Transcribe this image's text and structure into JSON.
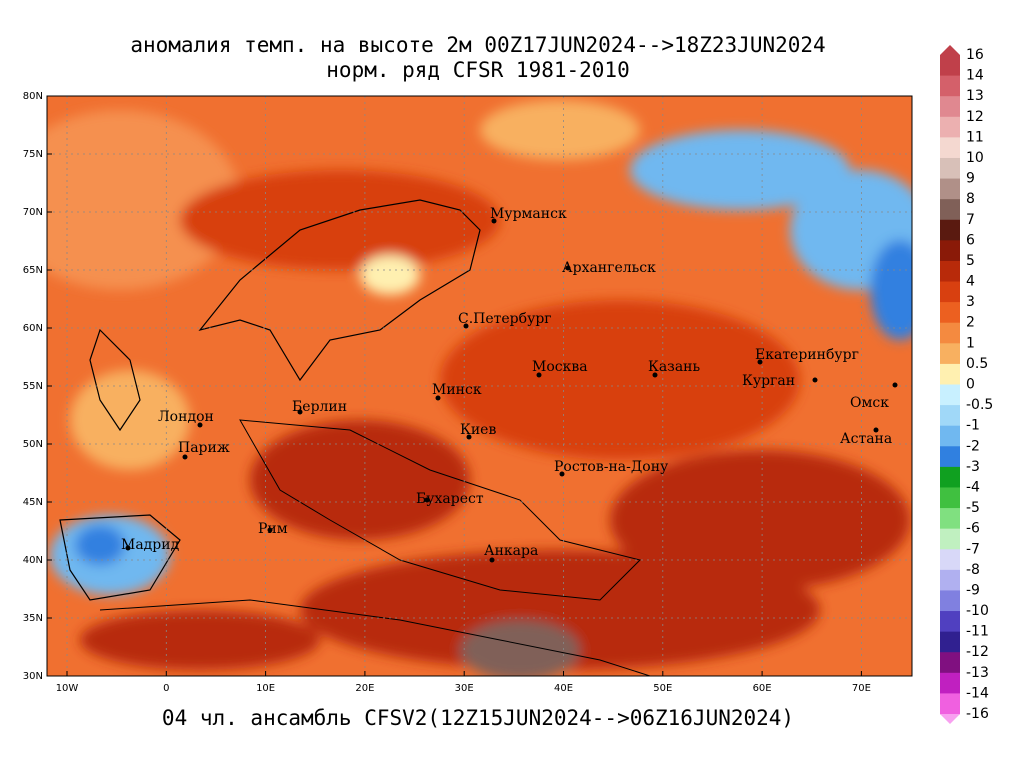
{
  "header": {
    "title": "аномалия темп. на высоте 2м 00Z17JUN2024-->18Z23JUN2024",
    "subtitle": "норм. ряд CFSR 1981-2010"
  },
  "footer": "04 чл. ансамбль CFSV2(12Z15JUN2024-->06Z16JUN2024)",
  "map": {
    "lat_labels": [
      "80N",
      "75N",
      "70N",
      "65N",
      "60N",
      "55N",
      "50N",
      "45N",
      "40N",
      "35N",
      "30N"
    ],
    "lon_labels": [
      "10W",
      "0",
      "10E",
      "20E",
      "30E",
      "40E",
      "50E",
      "60E",
      "70E"
    ],
    "cities": [
      "Мурманск",
      "Архангельск",
      "С.Петербург",
      "Москва",
      "Казань",
      "Екатеринбург",
      "Курган",
      "Омск",
      "Астана",
      "Минск",
      "Лондон",
      "Берлин",
      "Париж",
      "Киев",
      "Ростов-на-Дону",
      "Бухарест",
      "Рим",
      "Мадрид",
      "Анкара"
    ]
  },
  "colorbar": {
    "labels": [
      16,
      14,
      13,
      12,
      11,
      10,
      9,
      8,
      7,
      6,
      5,
      4,
      3,
      2,
      1,
      0.5,
      0,
      -0.5,
      -1,
      -2,
      -3,
      -4,
      -5,
      -6,
      -7,
      -8,
      -9,
      -10,
      -11,
      -12,
      -13,
      -14,
      -16
    ],
    "colors": [
      "#c0404a",
      "#d4606a",
      "#e08890",
      "#ecb0b0",
      "#f4d8d0",
      "#d8c0b8",
      "#b09088",
      "#806058",
      "#5a1a10",
      "#8a1a08",
      "#b82a0a",
      "#d84010",
      "#ec6020",
      "#f48a40",
      "#f8b060",
      "#fff0b0",
      "#c8f0ff",
      "#a0d8f8",
      "#70b8f0",
      "#3080e0",
      "#10a020",
      "#40c040",
      "#80e080",
      "#c0f0c0",
      "#d8d8f8",
      "#b0b0f0",
      "#8080e0",
      "#5040c0",
      "#302090",
      "#801080",
      "#c020c0",
      "#f060e0"
    ]
  }
}
